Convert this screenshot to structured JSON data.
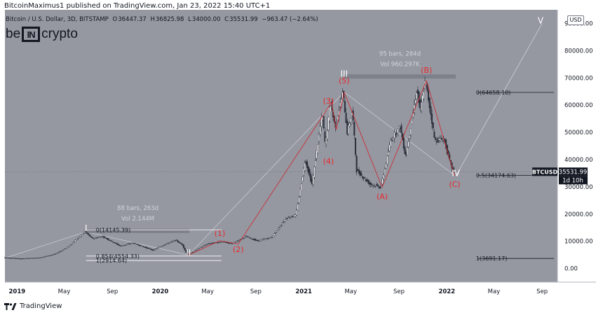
{
  "header": {
    "publisher": "BitcoinMaximus1 published on TradingView.com, Jan 23, 2022 15:40 UTC+1",
    "symbol": "Bitcoin / U.S. Dollar, 3D, BITSTAMP",
    "ohlc": {
      "o_label": "O",
      "o_value": "36447.37",
      "h_label": "H",
      "h_value": "36825.98",
      "l_label": "L",
      "l_value": "34000.00",
      "c_label": "C",
      "c_value": "35531.99",
      "change": "−963.47 (−2.64%)"
    }
  },
  "brand": {
    "pre": "be",
    "box": "IN",
    "post": "crypto"
  },
  "currency_label": "USD",
  "footer": {
    "label": "TradingView"
  },
  "colors": {
    "background_plot": "#9598a1",
    "candle": "#2a2e39",
    "wave_label": "#e8272c",
    "wave_line": "#d0232a",
    "major_label": "#ffffff",
    "fib_line": "#ffffff",
    "axis_text": "#131722",
    "price_tag": "#131722"
  },
  "chart_data": {
    "type": "candlestick",
    "title": "Bitcoin / U.S. Dollar, 3D, BITSTAMP",
    "yscale": "linear",
    "ylim": [
      -5000,
      95000
    ],
    "y_ticks": [
      0,
      10000,
      20000,
      30000,
      40000,
      50000,
      60000,
      70000,
      80000,
      90000
    ],
    "y_tick_labels": [
      "0.00",
      "10000.00",
      "20000.00",
      "30000.00",
      "40000.00",
      "50000.00",
      "60000.00",
      "70000.00",
      "80000.00",
      "90000.00"
    ],
    "xlim": [
      "2018-12-01",
      "2022-10-10"
    ],
    "x_tick_labels": [
      {
        "date": "2019-01-01",
        "label": "2019"
      },
      {
        "date": "2019-05-01",
        "label": "May"
      },
      {
        "date": "2019-09-01",
        "label": "Sep"
      },
      {
        "date": "2020-01-01",
        "label": "2020"
      },
      {
        "date": "2020-05-01",
        "label": "May"
      },
      {
        "date": "2020-09-01",
        "label": "Sep"
      },
      {
        "date": "2021-01-01",
        "label": "2021"
      },
      {
        "date": "2021-05-01",
        "label": "May"
      },
      {
        "date": "2021-09-01",
        "label": "Sep"
      },
      {
        "date": "2022-01-01",
        "label": "2022"
      },
      {
        "date": "2022-05-01",
        "label": "May"
      },
      {
        "date": "2022-09-01",
        "label": "Sep"
      }
    ],
    "price_path": [
      [
        "2018-12-01",
        4000
      ],
      [
        "2019-01-15",
        3600
      ],
      [
        "2019-03-01",
        3900
      ],
      [
        "2019-04-10",
        5200
      ],
      [
        "2019-05-15",
        8000
      ],
      [
        "2019-06-26",
        13500
      ],
      [
        "2019-07-15",
        11000
      ],
      [
        "2019-08-10",
        11800
      ],
      [
        "2019-09-25",
        8200
      ],
      [
        "2019-10-26",
        9400
      ],
      [
        "2019-12-17",
        6700
      ],
      [
        "2020-01-15",
        8800
      ],
      [
        "2020-02-13",
        10400
      ],
      [
        "2020-03-01",
        8600
      ],
      [
        "2020-03-13",
        4900
      ],
      [
        "2020-04-01",
        6600
      ],
      [
        "2020-05-05",
        9100
      ],
      [
        "2020-06-10",
        9800
      ],
      [
        "2020-07-05",
        9100
      ],
      [
        "2020-08-10",
        11800
      ],
      [
        "2020-09-08",
        10100
      ],
      [
        "2020-10-15",
        11500
      ],
      [
        "2020-11-20",
        18500
      ],
      [
        "2020-12-15",
        19500
      ],
      [
        "2021-01-08",
        40000
      ],
      [
        "2021-01-25",
        31000
      ],
      [
        "2021-02-20",
        57000
      ],
      [
        "2021-02-28",
        45000
      ],
      [
        "2021-03-13",
        61000
      ],
      [
        "2021-03-25",
        52000
      ],
      [
        "2021-04-14",
        64800
      ],
      [
        "2021-04-25",
        50000
      ],
      [
        "2021-05-08",
        58000
      ],
      [
        "2021-05-19",
        36000
      ],
      [
        "2021-06-22",
        31000
      ],
      [
        "2021-07-20",
        29800
      ],
      [
        "2021-08-14",
        47000
      ],
      [
        "2021-08-24",
        49500
      ],
      [
        "2021-09-07",
        52000
      ],
      [
        "2021-09-21",
        41000
      ],
      [
        "2021-10-20",
        66000
      ],
      [
        "2021-10-28",
        58000
      ],
      [
        "2021-11-10",
        69000
      ],
      [
        "2021-11-25",
        56000
      ],
      [
        "2021-12-04",
        47000
      ],
      [
        "2021-12-28",
        47500
      ],
      [
        "2022-01-10",
        40000
      ],
      [
        "2022-01-21",
        35531.99
      ]
    ],
    "annotations": {
      "major_waves": [
        {
          "label": "I",
          "date": "2019-06-26",
          "price": 13800
        },
        {
          "label": "II",
          "date": "2020-03-13",
          "price": 4800
        },
        {
          "label": "III",
          "date": "2021-04-14",
          "price": 70500
        },
        {
          "label": "IV",
          "date": "2022-01-24",
          "price": 34000
        },
        {
          "label": "V",
          "date": "2022-08-28",
          "price": 90000
        }
      ],
      "minor_waves": [
        {
          "label": "(1)",
          "date": "2020-06-01",
          "price": 12000,
          "anchor": [
            [
              "2020-03-13",
              4900
            ],
            [
              "2020-06-01",
              10200
            ]
          ]
        },
        {
          "label": "(2)",
          "date": "2020-07-18",
          "price": 6000,
          "anchor": [
            [
              "2020-06-01",
              10200
            ],
            [
              "2020-07-18",
              9000
            ]
          ]
        },
        {
          "label": "(3)",
          "date": "2021-03-05",
          "price": 60500,
          "anchor": [
            [
              "2020-07-18",
              9000
            ],
            [
              "2021-03-13",
              61000
            ]
          ]
        },
        {
          "label": "(4)",
          "date": "2021-03-05",
          "price": 38500,
          "anchor": [
            [
              "2021-03-13",
              61000
            ],
            [
              "2021-03-25",
              51000
            ]
          ]
        },
        {
          "label": "(5)",
          "date": "2021-04-14",
          "price": 68000,
          "anchor": [
            [
              "2021-03-25",
              51000
            ],
            [
              "2021-04-14",
              64800
            ]
          ]
        },
        {
          "label": "(A)",
          "date": "2021-07-20",
          "price": 25500,
          "anchor": [
            [
              "2021-04-14",
              64800
            ],
            [
              "2021-07-20",
              29800
            ]
          ]
        },
        {
          "label": "(B)",
          "date": "2021-11-10",
          "price": 71800,
          "anchor": [
            [
              "2021-07-20",
              29800
            ],
            [
              "2021-11-10",
              69000
            ]
          ]
        },
        {
          "label": "(C)",
          "date": "2022-01-21",
          "price": 30000,
          "anchor": [
            [
              "2021-11-10",
              69000
            ],
            [
              "2022-01-21",
              34000
            ]
          ]
        }
      ],
      "range_boxes": [
        {
          "line1": "88 bars, 263d",
          "line2": "Vol 2.144M",
          "start": "2019-06-26",
          "end": "2020-03-16",
          "price": 13800
        },
        {
          "line1": "95 bars, 284d",
          "line2": "Vol 960.297K",
          "start": "2021-04-14",
          "end": "2022-01-24",
          "price": 70500
        }
      ],
      "fib_left": {
        "start": "2019-06-26",
        "end": "2020-06-05",
        "levels": [
          {
            "label": "0(14145.39)",
            "price": 14145.39
          },
          {
            "label": "0.854(4554.33)",
            "price": 4554.33
          },
          {
            "label": "1(2914.64)",
            "price": 2914.64
          }
        ]
      },
      "fib_right": {
        "start": "2022-03-20",
        "end": "2022-10-01",
        "levels": [
          {
            "label": "0(64658.10)",
            "price": 64658.1
          },
          {
            "label": "0.5(34174.63)",
            "price": 34174.63
          },
          {
            "label": "1(3691.17)",
            "price": 3691.17
          }
        ]
      },
      "projection": [
        [
          "2022-01-24",
          34000
        ],
        [
          "2022-09-01",
          90000
        ]
      ],
      "grey_trend": [
        [
          "2018-12-01",
          3800
        ],
        [
          "2019-06-26",
          13500
        ],
        [
          "2020-03-13",
          4900
        ],
        [
          "2021-04-14",
          64800
        ],
        [
          "2022-01-21",
          34174
        ]
      ]
    },
    "last_price": {
      "symbol": "BTCUSD",
      "value": "35531.99",
      "countdown": "1d 10h",
      "price": 35531.99
    }
  }
}
